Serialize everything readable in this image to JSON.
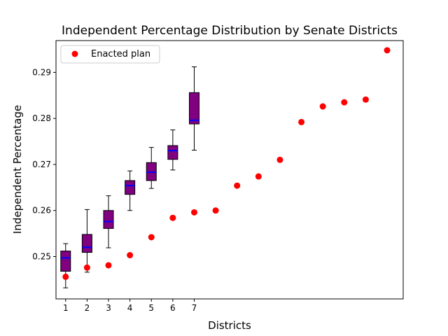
{
  "chart_data": {
    "type": "box+scatter",
    "title": "Independent Percentage Distribution by Senate Districts",
    "xlabel": "Districts",
    "ylabel": "Independent Percentage",
    "xlim": [
      0.55,
      16.75
    ],
    "ylim": [
      0.2408,
      0.2969
    ],
    "x_ticks": [
      1,
      2,
      3,
      4,
      5,
      6,
      7
    ],
    "x_tick_labels": [
      "1",
      "2",
      "3",
      "4",
      "5",
      "6",
      "7"
    ],
    "y_ticks": [
      0.25,
      0.26,
      0.27,
      0.28,
      0.29
    ],
    "y_tick_labels": [
      "0.25",
      "0.26",
      "0.27",
      "0.28",
      "0.29"
    ],
    "legend": {
      "placement": "top-left",
      "entries": [
        "Enacted plan"
      ]
    },
    "box_color": "#800080",
    "median_color": "#0000ff",
    "scatter_color": "#ff0000",
    "boxes": [
      {
        "x": 1,
        "whislo": 0.2432,
        "q1": 0.2468,
        "med": 0.2497,
        "q3": 0.2512,
        "whishi": 0.2528
      },
      {
        "x": 2,
        "whislo": 0.2466,
        "q1": 0.2509,
        "med": 0.252,
        "q3": 0.2548,
        "whishi": 0.2602
      },
      {
        "x": 3,
        "whislo": 0.2519,
        "q1": 0.2561,
        "med": 0.2576,
        "q3": 0.26,
        "whishi": 0.2632
      },
      {
        "x": 4,
        "whislo": 0.26,
        "q1": 0.2635,
        "med": 0.2654,
        "q3": 0.2665,
        "whishi": 0.2686
      },
      {
        "x": 5,
        "whislo": 0.2648,
        "q1": 0.2665,
        "med": 0.2683,
        "q3": 0.2704,
        "whishi": 0.2737
      },
      {
        "x": 6,
        "whislo": 0.2688,
        "q1": 0.2711,
        "med": 0.273,
        "q3": 0.2741,
        "whishi": 0.2775
      },
      {
        "x": 7,
        "whislo": 0.2731,
        "q1": 0.2788,
        "med": 0.2796,
        "q3": 0.2856,
        "whishi": 0.2912
      }
    ],
    "enacted": {
      "name": "Enacted plan",
      "x": [
        1,
        2,
        3,
        4,
        5,
        6,
        7,
        8,
        9,
        10,
        11,
        12,
        13,
        14,
        15,
        16
      ],
      "y": [
        0.2456,
        0.2476,
        0.2481,
        0.2503,
        0.2542,
        0.2584,
        0.2596,
        0.26,
        0.2654,
        0.2674,
        0.271,
        0.2792,
        0.2826,
        0.2835,
        0.2841,
        0.2948
      ]
    }
  }
}
